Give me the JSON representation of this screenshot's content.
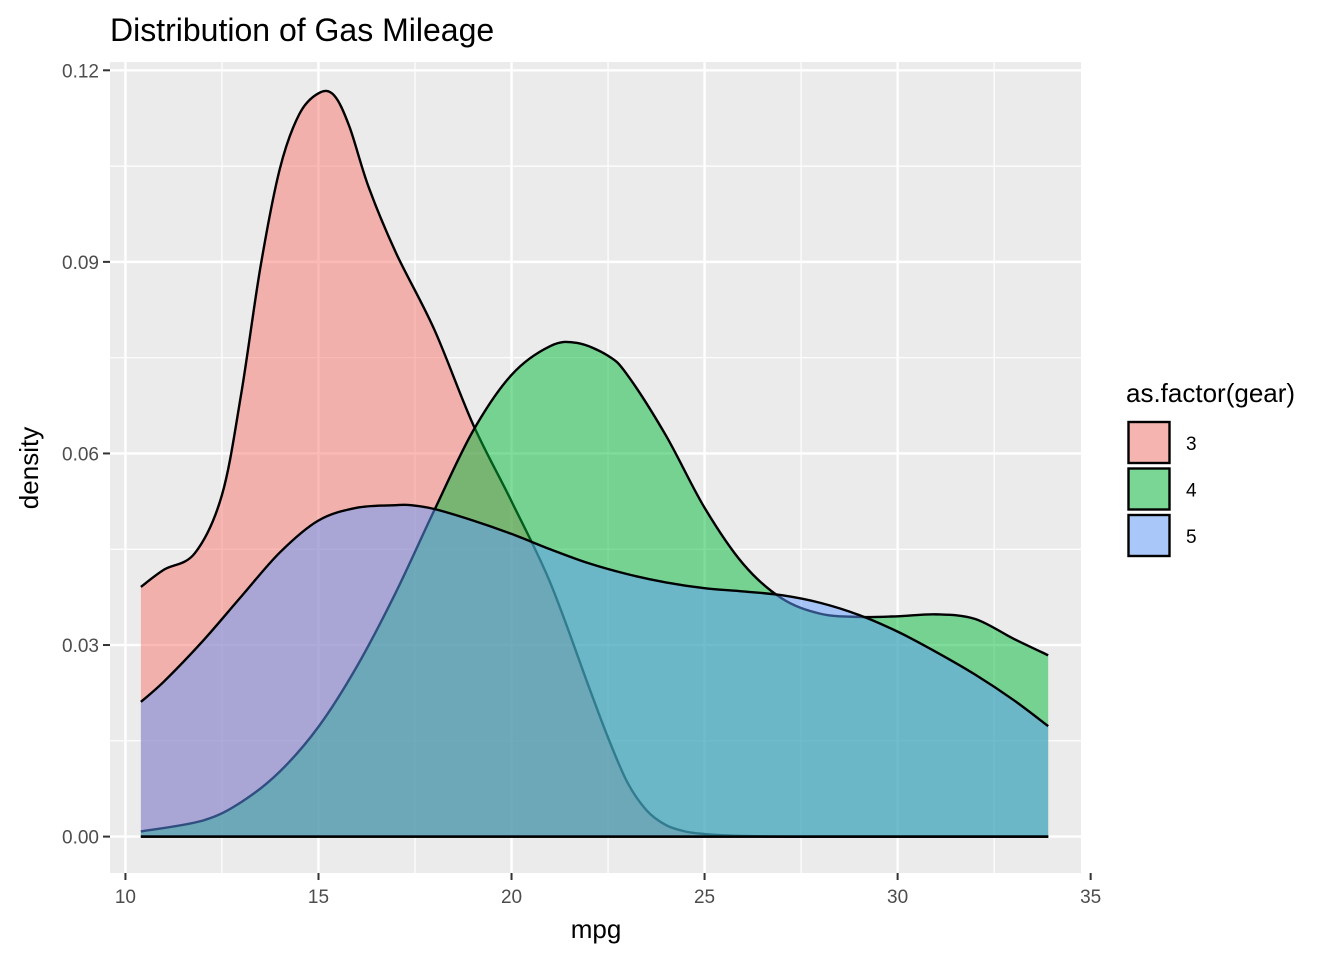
{
  "chart_data": {
    "type": "area",
    "title": "Distribution of Gas Mileage",
    "xlabel": "mpg",
    "ylabel": "density",
    "xlim": [
      9.6,
      34.75
    ],
    "ylim": [
      -0.0057,
      0.1213
    ],
    "x_ticks": [
      10,
      15,
      20,
      25,
      30,
      35
    ],
    "x_tick_labels": [
      "10",
      "15",
      "20",
      "25",
      "30",
      "35"
    ],
    "y_ticks": [
      0.0,
      0.03,
      0.06,
      0.09,
      0.12
    ],
    "y_tick_labels": [
      "0.00",
      "0.03",
      "0.06",
      "0.09",
      "0.12"
    ],
    "grid": true,
    "legend": {
      "title": "as.factor(gear)",
      "position": "right"
    },
    "series": [
      {
        "name": "3",
        "color": "#F8766D",
        "x": [
          10.4,
          11.0,
          11.8,
          12.5,
          13.0,
          13.5,
          14.0,
          14.5,
          15.0,
          15.4,
          15.8,
          16.3,
          17.0,
          18.0,
          19.0,
          20.0,
          21.0,
          22.0,
          22.5,
          23.0,
          23.5,
          24.0,
          24.5,
          25.0,
          25.5,
          26.0,
          27.0,
          28.0,
          30.0,
          32.0,
          33.9
        ],
        "y": [
          0.0391,
          0.0418,
          0.0444,
          0.0535,
          0.0694,
          0.0893,
          0.1046,
          0.1131,
          0.1164,
          0.1161,
          0.1112,
          0.1017,
          0.0915,
          0.0794,
          0.0646,
          0.0525,
          0.0398,
          0.0235,
          0.0155,
          0.0085,
          0.0041,
          0.0018,
          0.0008,
          0.0004,
          0.0002,
          0.0001,
          0.0,
          0.0,
          0.0,
          0.0,
          0.0
        ]
      },
      {
        "name": "4",
        "color": "#00BA38",
        "x": [
          10.4,
          12.0,
          13.0,
          14.0,
          15.0,
          16.0,
          17.0,
          18.0,
          19.0,
          20.0,
          21.0,
          21.7,
          22.5,
          23.0,
          24.0,
          25.0,
          26.0,
          27.0,
          28.0,
          29.0,
          30.0,
          31.0,
          32.0,
          33.0,
          33.9
        ],
        "y": [
          0.0008,
          0.0025,
          0.0054,
          0.0102,
          0.0172,
          0.0267,
          0.0382,
          0.0511,
          0.0635,
          0.0723,
          0.0768,
          0.0773,
          0.0753,
          0.0723,
          0.0628,
          0.0515,
          0.0427,
          0.0373,
          0.0349,
          0.0344,
          0.0345,
          0.0348,
          0.0341,
          0.031,
          0.0284
        ]
      },
      {
        "name": "5",
        "color": "#619CFF",
        "x": [
          10.4,
          11.0,
          12.0,
          13.0,
          14.0,
          15.0,
          16.0,
          17.0,
          17.4,
          18.0,
          19.0,
          20.0,
          21.0,
          22.0,
          23.0,
          24.0,
          25.0,
          26.0,
          27.0,
          28.0,
          29.0,
          30.0,
          31.0,
          32.0,
          33.0,
          33.9
        ],
        "y": [
          0.0211,
          0.0243,
          0.0306,
          0.0376,
          0.0445,
          0.0495,
          0.0515,
          0.0519,
          0.0519,
          0.0513,
          0.0495,
          0.0474,
          0.045,
          0.0428,
          0.0411,
          0.0398,
          0.0389,
          0.0384,
          0.0378,
          0.0366,
          0.0347,
          0.0321,
          0.0289,
          0.0254,
          0.0214,
          0.0173
        ]
      }
    ]
  }
}
